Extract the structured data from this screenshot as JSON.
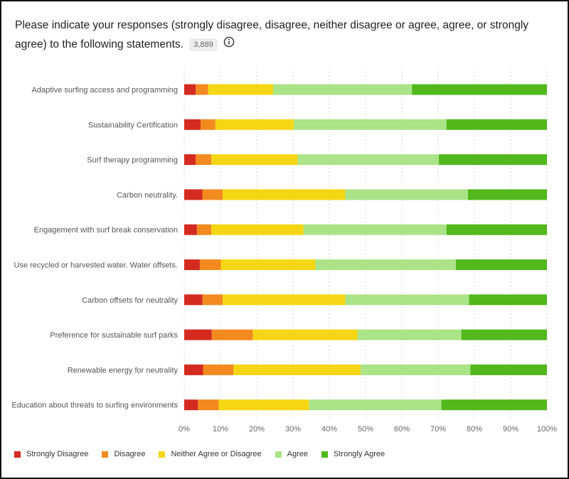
{
  "header": {
    "question": "Please indicate your responses (strongly disagree, disagree, neither disagree or agree, agree, or strongly agree) to the following statements.",
    "count": "3,889",
    "info_icon": "info-icon"
  },
  "chart_data": {
    "type": "bar",
    "orientation": "horizontal",
    "stacked": true,
    "percent_scale": true,
    "categories": [
      "Adaptive surfing access and programming",
      "Sustainability Certification",
      "Surf therapy programming",
      "Carbon neutrality.",
      "Engagement with surf break conservation",
      "Use recycled or harvested water. Water offsets.",
      "Carbon offsets for neutrality",
      "Preference for sustainable surf parks",
      "Renewable energy for neutrality",
      "Education about threats to surfing environments"
    ],
    "series": [
      {
        "name": "Strongly Disagree",
        "color": "#d42a20",
        "values": [
          3.2,
          4.5,
          3.2,
          5.0,
          3.5,
          4.3,
          5.0,
          7.6,
          5.2,
          3.8
        ]
      },
      {
        "name": "Disagree",
        "color": "#f28a20",
        "values": [
          3.4,
          4.1,
          4.3,
          5.6,
          4.0,
          5.8,
          5.6,
          11.3,
          8.4,
          5.7
        ]
      },
      {
        "name": "Neither Agree or Disagree",
        "color": "#f5d614",
        "values": [
          17.9,
          21.6,
          23.8,
          33.8,
          25.4,
          26.1,
          33.8,
          28.9,
          35.0,
          24.9
        ]
      },
      {
        "name": "Agree",
        "color": "#abe387",
        "values": [
          38.3,
          42.1,
          38.9,
          33.8,
          39.4,
          38.7,
          34.1,
          28.6,
          30.3,
          36.5
        ]
      },
      {
        "name": "Strongly Agree",
        "color": "#52b81c",
        "values": [
          37.2,
          27.7,
          29.8,
          21.8,
          27.7,
          25.1,
          21.5,
          23.6,
          21.1,
          29.1
        ]
      }
    ],
    "x_ticks": [
      "0%",
      "10%",
      "20%",
      "30%",
      "40%",
      "50%",
      "60%",
      "70%",
      "80%",
      "90%",
      "100%"
    ],
    "xlim": [
      0,
      100
    ],
    "grid": "vertical dashed",
    "legend_position": "bottom-left"
  }
}
